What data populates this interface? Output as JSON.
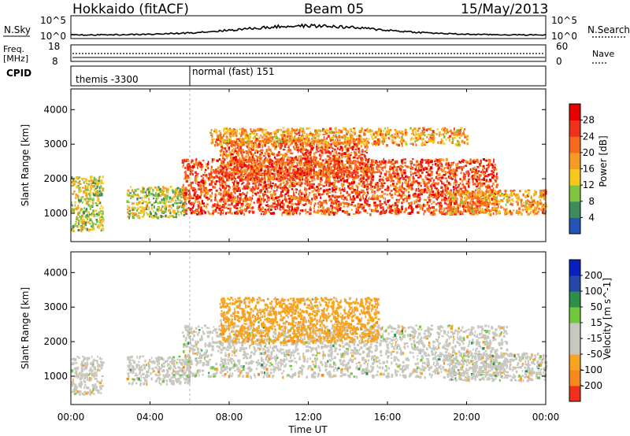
{
  "header": {
    "station": "Hokkaido (fitACF)",
    "beam": "Beam 05",
    "date": "15/May/2013"
  },
  "top_panels": {
    "nsky_label": "N.Sky",
    "nsearch_label": "N.Search",
    "nsky_tick_hi": "10^5",
    "nsky_tick_lo": "10^0",
    "nsky_right_hi": "10^5",
    "nsky_right_lo": "10^0",
    "freq_label_1": "Freq.",
    "freq_label_2": "[MHz]",
    "freq_tick_hi": "18",
    "freq_tick_lo": "8",
    "nave_label": "Nave",
    "nave_tick_hi": "60",
    "nave_tick_lo": "0",
    "cpid_label": "CPID",
    "cpid_segments": [
      {
        "label": "themis -3300",
        "start_hour": 0,
        "end_hour": 6
      },
      {
        "label": "normal (fast) 151",
        "start_hour": 6,
        "end_hour": 24
      }
    ]
  },
  "x_axis": {
    "label": "Time UT",
    "ticks": [
      "00:00",
      "04:00",
      "08:00",
      "12:00",
      "16:00",
      "20:00",
      "00:00"
    ],
    "range_hours": [
      0,
      24
    ]
  },
  "colors": {
    "scale": [
      "#0000ff",
      "#2554b8",
      "#3e8c5a",
      "#82c341",
      "#f7c81c",
      "#f79c22",
      "#f76a1d",
      "#f0301a",
      "#e60000"
    ],
    "velocity_scale": [
      "#e60000",
      "#f0301a",
      "#f7881d",
      "#f7a520",
      "#c8c8c0",
      "#c8c8c0",
      "#72c83c",
      "#2d8f4a",
      "#2548a8",
      "#0a1fbf"
    ],
    "grey": "#c8c8c0"
  },
  "chart_data": [
    {
      "type": "heatmap",
      "name": "power-panel",
      "ylabel": "Slant Range [km]",
      "ylim": [
        180,
        4600
      ],
      "yticks": [
        "1000",
        "2000",
        "3000",
        "4000"
      ],
      "ytick_values": [
        1000,
        2000,
        3000,
        4000
      ],
      "colorbar_label": "Power [dB]",
      "colorbar_ticks": [
        "4",
        "8",
        "12",
        "16",
        "20",
        "24",
        "28"
      ],
      "colorbar_range": [
        0,
        32
      ],
      "echo_bands": [
        {
          "from_hour": 0.0,
          "to_hour": 1.6,
          "range_low": 500,
          "range_high": 2100,
          "power": 14
        },
        {
          "from_hour": 2.8,
          "to_hour": 5.8,
          "range_low": 900,
          "range_high": 1800,
          "power": 14
        },
        {
          "from_hour": 5.6,
          "to_hour": 21.5,
          "range_low": 1000,
          "range_high": 2600,
          "power": 26
        },
        {
          "from_hour": 7.5,
          "to_hour": 15.0,
          "range_low": 2000,
          "range_high": 3200,
          "power": 25
        },
        {
          "from_hour": 7.0,
          "to_hour": 20.0,
          "range_low": 3000,
          "range_high": 3500,
          "power": 20
        },
        {
          "from_hour": 19.0,
          "to_hour": 24.0,
          "range_low": 1000,
          "range_high": 1700,
          "power": 20
        }
      ]
    },
    {
      "type": "heatmap",
      "name": "velocity-panel",
      "ylabel": "Slant Range [km]",
      "ylim": [
        180,
        4600
      ],
      "yticks": [
        "1000",
        "2000",
        "3000",
        "4000"
      ],
      "ytick_values": [
        1000,
        2000,
        3000,
        4000
      ],
      "colorbar_label": "Velocity [m s^-1]",
      "colorbar_ticks": [
        "-200",
        "-100",
        "-50",
        "-15",
        "15",
        "50",
        "100",
        "200"
      ],
      "echo_bands": [
        {
          "from_hour": 0.0,
          "to_hour": 1.6,
          "range_low": 500,
          "range_high": 1600,
          "velocity": 0
        },
        {
          "from_hour": 2.8,
          "to_hour": 6.0,
          "range_low": 800,
          "range_high": 1600,
          "velocity": 0
        },
        {
          "from_hour": 5.6,
          "to_hour": 22.0,
          "range_low": 1000,
          "range_high": 2500,
          "velocity": 0
        },
        {
          "from_hour": 7.5,
          "to_hour": 15.5,
          "range_low": 2000,
          "range_high": 3300,
          "velocity": -40
        },
        {
          "from_hour": 19.0,
          "to_hour": 24.0,
          "range_low": 900,
          "range_high": 1700,
          "velocity": 0
        }
      ]
    }
  ]
}
